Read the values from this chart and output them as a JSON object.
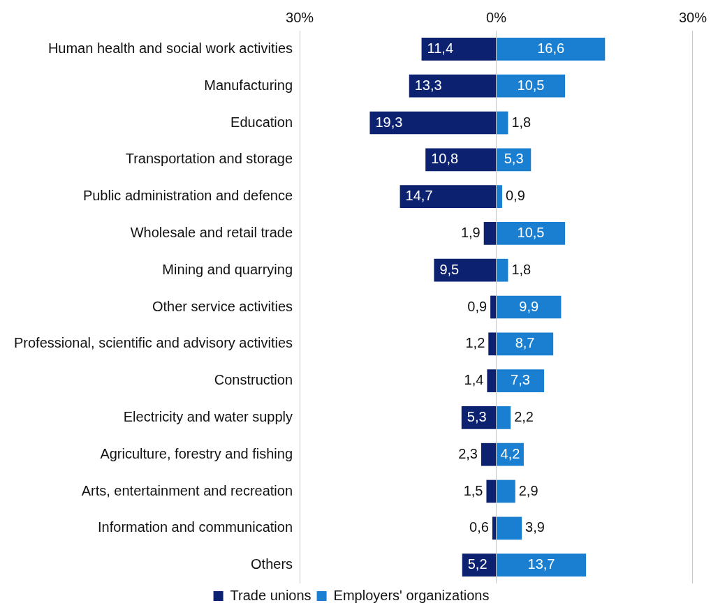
{
  "chart_data": {
    "type": "bar",
    "orientation": "horizontal",
    "stacked": true,
    "categories": [
      "Human health and social work activities",
      "Manufacturing",
      "Education",
      "Transportation and storage",
      "Public administration and defence",
      "Wholesale and retail trade",
      "Mining and quarrying",
      "Other service activities",
      "Professional, scientific and advisory activities",
      "Construction",
      "Electricity and water supply",
      "Agriculture, forestry and fishing",
      "Arts, entertainment and recreation",
      "Information and communication",
      "Others"
    ],
    "series": [
      {
        "name": "Trade unions",
        "color": "#0c2170",
        "values": [
          -11.4,
          -13.3,
          -19.3,
          -10.8,
          -14.7,
          -1.9,
          -9.5,
          -0.9,
          -1.2,
          -1.4,
          -5.3,
          -2.3,
          -1.5,
          -0.6,
          -5.2
        ]
      },
      {
        "name": "Employers' organizations",
        "color": "#1a7fd0",
        "values": [
          16.6,
          10.5,
          1.8,
          5.3,
          0.9,
          10.5,
          1.8,
          9.9,
          8.7,
          7.3,
          2.2,
          4.2,
          2.9,
          3.9,
          13.7
        ],
        "value_labels": [
          "16,6",
          "10,5",
          "1,8",
          "5,3",
          "0,9",
          "10,5",
          "1,8",
          "9,9",
          "8,7",
          "7,3",
          "2,2",
          "4,2",
          "2,9",
          "3,9",
          "13,7"
        ]
      }
    ],
    "annotations": [
      {
        "text": "11,4",
        "x": -11.4,
        "y": "Human health and social work activities"
      },
      {
        "text": "13,3",
        "x": -13.3,
        "y": "Manufacturing"
      },
      {
        "text": "19,3",
        "x": -19.3,
        "y": "Education"
      },
      {
        "text": "10,8",
        "x": -10.8,
        "y": "Transportation and storage"
      },
      {
        "text": "14,7",
        "x": -14.7,
        "y": "Public administration and defence"
      },
      {
        "text": "1,9",
        "x": -1.9,
        "y": "Wholesale and retail trade"
      },
      {
        "text": "9,5",
        "x": -9.5,
        "y": "Mining and quarrying"
      },
      {
        "text": "0,9",
        "x": -0.9,
        "y": "Other service activities"
      },
      {
        "text": "1,2",
        "x": -1.2,
        "y": "Professional, scientific and advisory activities"
      },
      {
        "text": "1,4",
        "x": -1.4,
        "y": "Construction"
      },
      {
        "text": "5,3",
        "x": -5.3,
        "y": "Electricity and water supply"
      },
      {
        "text": "2,3",
        "x": -2.3,
        "y": "Agriculture, forestry and fishing"
      },
      {
        "text": "1,5",
        "x": -1.5,
        "y": "Arts, entertainment and recreation"
      },
      {
        "text": "0,6",
        "x": -0.6,
        "y": "Information and communication"
      },
      {
        "text": "5,2",
        "x": -5.2,
        "y": "Others"
      }
    ],
    "xlim": [
      -30,
      30
    ],
    "xticks": [
      {
        "value": -30,
        "label": "30%"
      },
      {
        "value": 0,
        "label": "0%"
      },
      {
        "value": 30,
        "label": "30%"
      }
    ],
    "grid": "x",
    "legend": "bottom"
  }
}
